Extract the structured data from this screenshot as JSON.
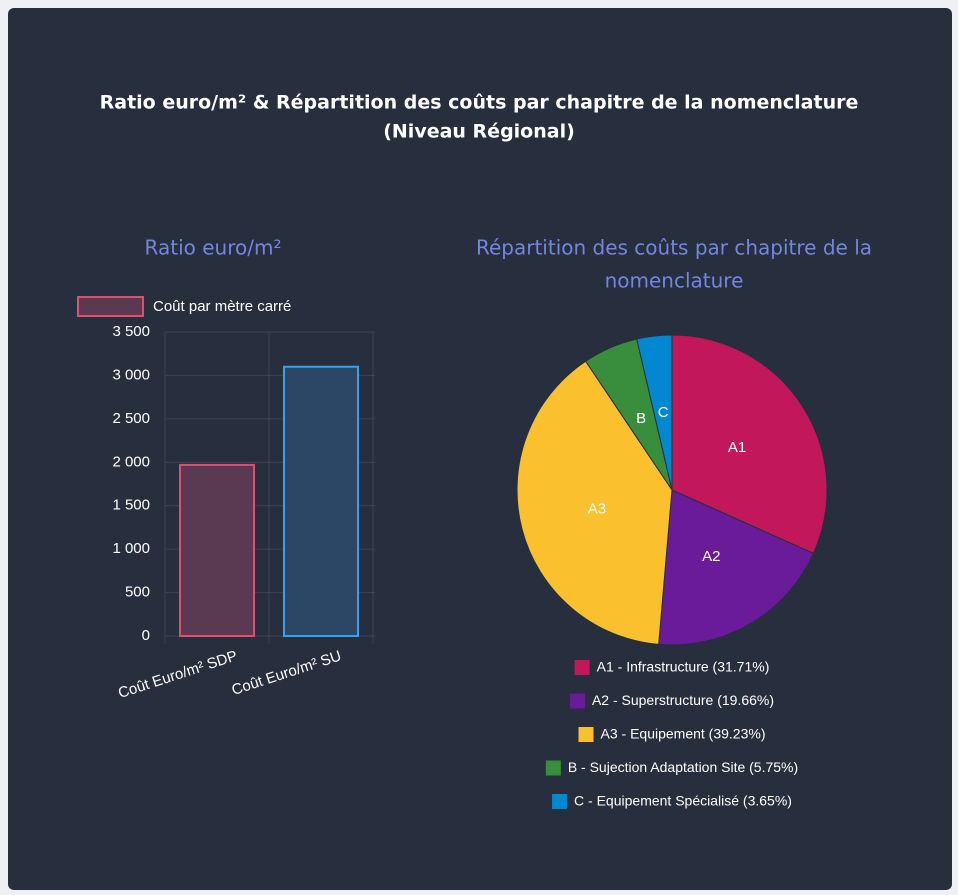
{
  "header": {
    "title": [
      "Ratio euro/m² & Répartition des coûts par chapitre de la nomenclature",
      "(Niveau Régional)"
    ]
  },
  "chart_data": [
    {
      "type": "bar",
      "title": [
        "Ratio euro/m²"
      ],
      "legend": "Coût par mètre carré",
      "categories": [
        "Coût Euro/m² SDP",
        "Coût Euro/m² SU"
      ],
      "values": [
        1970,
        3100
      ],
      "colors": [
        "#e0506e",
        "#36a2eb"
      ],
      "fills": [
        "#5a3a52",
        "#2c4766"
      ],
      "ylim": [
        0,
        3500
      ],
      "yticks": [
        0,
        500,
        {
          "value": 1000,
          "label": "1 000"
        },
        {
          "value": 1500,
          "label": "1 500"
        },
        {
          "value": 2000,
          "label": "2 000"
        },
        {
          "value": 2500,
          "label": "2 500"
        },
        {
          "value": 3000,
          "label": "3 000"
        },
        {
          "value": 3500,
          "label": "3 500"
        }
      ],
      "grid": true
    },
    {
      "type": "pie",
      "title": [
        "Répartition des coûts par chapitre de la",
        "nomenclature"
      ],
      "categories": [
        "A1 - Infrastructure (31.71%)",
        "A2 - Superstructure (19.66%)",
        "A3 - Equipement (39.23%)",
        "B - Sujection Adaptation Site (5.75%)",
        "C - Equipement Spécialisé (3.65%)"
      ],
      "slice_labels": [
        "A1",
        "A2",
        "A3",
        "B",
        "C"
      ],
      "values": [
        31.71,
        19.66,
        39.23,
        5.75,
        3.65
      ],
      "colors": [
        "#c2185b",
        "#6a1b9a",
        "#fbc02d",
        "#388e3c",
        "#0288d1"
      ]
    }
  ]
}
